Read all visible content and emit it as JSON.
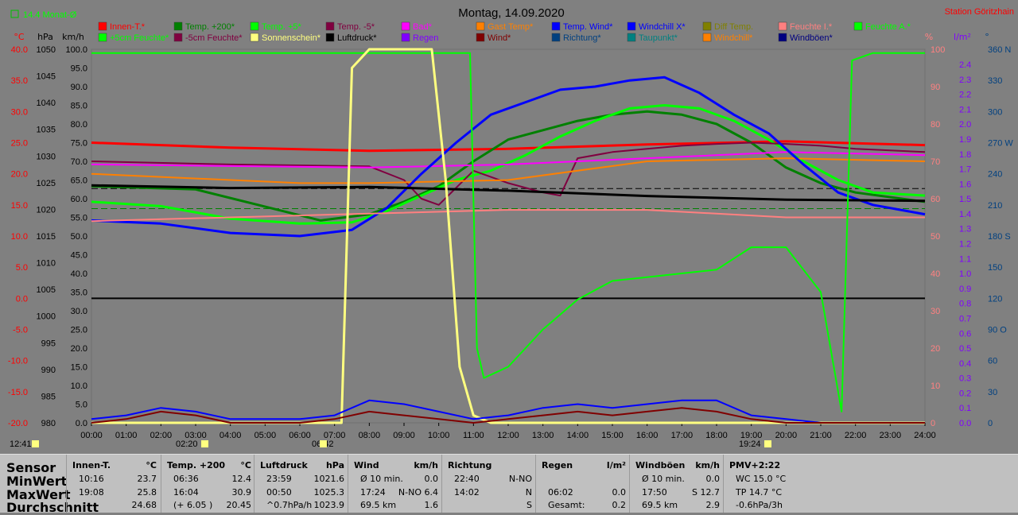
{
  "header": {
    "title": "Montag, 14.09.2020",
    "station": "Station Göritzhain",
    "monthly": "14.4 Monat-Ø"
  },
  "legend": [
    {
      "label": "Innen-T.*",
      "color": "#ff0000"
    },
    {
      "label": "Temp. +200*",
      "color": "#008000"
    },
    {
      "label": "Temp. +5*",
      "color": "#00ff00"
    },
    {
      "label": "Temp. -5*",
      "color": "#800040"
    },
    {
      "label": "Bad*",
      "color": "#ff00ff"
    },
    {
      "label": "Gast Temp*",
      "color": "#ff8000"
    },
    {
      "label": "Temp. Wind*",
      "color": "#0000ff"
    },
    {
      "label": "Windchill X*",
      "color": "#0000ff"
    },
    {
      "label": "Diff Temp.",
      "color": "#808000"
    },
    {
      "label": "Feuchte I.*",
      "color": "#ff8080"
    },
    {
      "label": "Feuchte A.*",
      "color": "#00ff00"
    },
    {
      "label": "+5cm Feuchte*",
      "color": "#00ff00"
    },
    {
      "label": "-5cm Feuchte*",
      "color": "#800040"
    },
    {
      "label": "Sonnenschein*",
      "color": "#ffff80"
    },
    {
      "label": "Luftdruck*",
      "color": "#000000"
    },
    {
      "label": "Regen",
      "color": "#8000ff"
    },
    {
      "label": "Wind*",
      "color": "#800000"
    },
    {
      "label": "Richtung*",
      "color": "#004080"
    },
    {
      "label": "Taupunkt*",
      "color": "#008080"
    },
    {
      "label": "Windchill*",
      "color": "#ff8000"
    },
    {
      "label": "Windböen*",
      "color": "#000080"
    }
  ],
  "axes": {
    "temp_unit": "°C",
    "hpa_unit": "hPa",
    "kmh_unit": "km/h",
    "pct_unit": "%",
    "rain_unit": "l/m²",
    "dir_unit": "°",
    "temp_ticks": [
      "40.0",
      "35.0",
      "30.0",
      "25.0",
      "20.0",
      "15.0",
      "10.0",
      "5.0",
      "0.0",
      "-5.0",
      "-10.0",
      "-15.0",
      "-20.0"
    ],
    "hpa_ticks": [
      "1050",
      "1045",
      "1040",
      "1035",
      "1030",
      "1025",
      "1020",
      "1015",
      "1010",
      "1005",
      "1000",
      "995",
      "990",
      "985",
      "980"
    ],
    "kmh_ticks": [
      "100.0",
      "95.0",
      "90.0",
      "85.0",
      "80.0",
      "75.0",
      "70.0",
      "65.0",
      "60.0",
      "55.0",
      "50.0",
      "45.0",
      "40.0",
      "35.0",
      "30.0",
      "25.0",
      "20.0",
      "15.0",
      "10.0",
      "5.0",
      "0.0"
    ],
    "pct_ticks": [
      "100",
      "90",
      "80",
      "70",
      "60",
      "50",
      "40",
      "30",
      "20",
      "10",
      "0"
    ],
    "rain_ticks": [
      "2.4",
      "2.3",
      "2.2",
      "2.1",
      "2.0",
      "1.9",
      "1.8",
      "1.7",
      "1.6",
      "1.5",
      "1.4",
      "1.3",
      "1.2",
      "1.1",
      "1.0",
      "0.9",
      "0.8",
      "0.7",
      "0.6",
      "0.5",
      "0.4",
      "0.3",
      "0.2",
      "0.1",
      "0.0"
    ],
    "dir_ticks": [
      "360 N",
      "330",
      "300",
      "270 W",
      "240",
      "210",
      "180 S",
      "150",
      "120",
      "90 O",
      "60",
      "30",
      "0"
    ],
    "time_ticks": [
      "00:00",
      "01:00",
      "02:00",
      "03:00",
      "04:00",
      "05:00",
      "06:00",
      "07:00",
      "08:00",
      "09:00",
      "10:00",
      "11:00",
      "12:00",
      "13:00",
      "14:00",
      "15:00",
      "16:00",
      "17:00",
      "18:00",
      "19:00",
      "20:00",
      "21:00",
      "22:00",
      "23:00",
      "24:00"
    ],
    "sun_events": [
      "12:41",
      "02:20",
      "06:42",
      "19:24"
    ]
  },
  "chart_data": {
    "type": "line",
    "title": "Montag, 14.09.2020",
    "x_range": [
      "00:00",
      "24:00"
    ],
    "ylim_temp": [
      -20,
      40
    ],
    "ylim_hpa": [
      980,
      1050
    ],
    "ylim_kmh": [
      0,
      100
    ],
    "ylim_pct": [
      0,
      100
    ],
    "series": [
      {
        "name": "Innen-T.*",
        "color": "#ff0000",
        "axis": "temp",
        "x": [
          0,
          4,
          8,
          12,
          16,
          20,
          24
        ],
        "values": [
          25.0,
          24.2,
          23.7,
          24.0,
          24.7,
          25.2,
          24.6
        ]
      },
      {
        "name": "Temp. +200*",
        "color": "#008000",
        "axis": "temp",
        "x": [
          0,
          3,
          6.6,
          8,
          9,
          10,
          11,
          12,
          13,
          14,
          15,
          16,
          17,
          18,
          19,
          20,
          21,
          22,
          24
        ],
        "values": [
          18.0,
          17.5,
          12.5,
          13.5,
          15.5,
          18.0,
          22.0,
          25.5,
          27.0,
          28.5,
          29.5,
          30.0,
          29.5,
          28.0,
          25.0,
          21.0,
          18.5,
          17.0,
          15.5
        ]
      },
      {
        "name": "Temp. +5*",
        "color": "#00ff00",
        "axis": "temp",
        "x": [
          0,
          2,
          4,
          6,
          7.5,
          8.5,
          9.5,
          10.5,
          11.5,
          12.5,
          13.5,
          14.5,
          15.5,
          16.5,
          17.5,
          18.5,
          19.5,
          20.5,
          21.5,
          22.5,
          24
        ],
        "values": [
          15.5,
          14.8,
          12.8,
          12.0,
          12.2,
          14.0,
          16.5,
          19.0,
          20.5,
          23.0,
          26.0,
          28.5,
          30.5,
          31.0,
          30.5,
          28.5,
          25.5,
          22.0,
          19.0,
          17.0,
          16.5
        ]
      },
      {
        "name": "Temp. -5*",
        "color": "#800040",
        "axis": "temp",
        "x": [
          0,
          4,
          8,
          9,
          9.5,
          10,
          11,
          12,
          13,
          13.5,
          14,
          15,
          16,
          17,
          18,
          19,
          20,
          21,
          22,
          24
        ],
        "values": [
          22.0,
          21.5,
          21.2,
          19.0,
          16.0,
          15.0,
          20.5,
          18.5,
          17.0,
          16.5,
          22.5,
          23.5,
          24.0,
          24.5,
          24.8,
          25.0,
          24.8,
          24.5,
          24.0,
          23.5
        ]
      },
      {
        "name": "Bad*",
        "color": "#ff00ff",
        "axis": "temp",
        "x": [
          0,
          8,
          12,
          16,
          20,
          24
        ],
        "values": [
          21.5,
          21.0,
          21.5,
          22.5,
          23.5,
          23.0
        ]
      },
      {
        "name": "Gast Temp*",
        "color": "#ff8000",
        "axis": "temp",
        "x": [
          0,
          6,
          8,
          12,
          16,
          20,
          24
        ],
        "values": [
          20.0,
          18.5,
          18.5,
          19.0,
          22.0,
          22.5,
          22.0
        ]
      },
      {
        "name": "Temp. Wind*",
        "color": "#0000ff",
        "axis": "temp",
        "x": [
          0,
          2,
          4,
          6,
          7.5,
          8.5,
          9.5,
          10.5,
          11.5,
          12.5,
          13.5,
          14.5,
          15.5,
          16.5,
          17.5,
          18.5,
          19.5,
          20.5,
          21.5,
          22.5,
          24
        ],
        "values": [
          12.5,
          12.0,
          10.5,
          10.0,
          11.0,
          14.5,
          20.0,
          25.0,
          29.5,
          31.5,
          33.5,
          34.0,
          35.0,
          35.5,
          33.0,
          29.5,
          26.5,
          21.5,
          17.0,
          15.0,
          13.5
        ]
      },
      {
        "name": "Luftdruck*",
        "color": "#000000",
        "axis": "hpa",
        "x": [
          0,
          4,
          8,
          12,
          16,
          20,
          24
        ],
        "values": [
          1024.5,
          1024.0,
          1024.2,
          1023.5,
          1022.5,
          1021.8,
          1021.6
        ]
      },
      {
        "name": "Feuchte I.*",
        "color": "#ff8080",
        "axis": "pct",
        "x": [
          0,
          8,
          12,
          16,
          20,
          24
        ],
        "values": [
          54,
          56,
          57,
          57,
          55,
          55
        ]
      },
      {
        "name": "Feuchte A.*",
        "color": "#00ff00",
        "axis": "pct",
        "x": [
          0,
          10.9,
          11.1,
          11.3,
          12,
          13,
          14,
          15,
          16,
          17,
          18,
          19,
          20,
          21,
          21.6,
          21.9,
          22.5,
          24
        ],
        "values": [
          99,
          99,
          20,
          12,
          15,
          25,
          33,
          38,
          39,
          40,
          41,
          47,
          47,
          35,
          3,
          97,
          99,
          99
        ]
      },
      {
        "name": "Sonnenschein*",
        "color": "#ffff80",
        "axis": "kmh",
        "x": [
          0,
          7.2,
          7.5,
          8.0,
          9.8,
          10.2,
          10.6,
          11,
          11.5,
          24
        ],
        "values": [
          0,
          0,
          95,
          100,
          100,
          65,
          15,
          2,
          0,
          0
        ]
      },
      {
        "name": "Windchill X*",
        "color": "#0000ff",
        "axis": "kmh",
        "x": [
          0,
          1,
          2,
          3,
          4,
          5,
          6,
          7,
          8,
          9,
          10,
          11,
          12,
          13,
          14,
          15,
          16,
          17,
          18,
          19,
          20,
          21,
          22,
          24
        ],
        "values": [
          1,
          2,
          4,
          3,
          1,
          1,
          1,
          2,
          6,
          5,
          3,
          1,
          2,
          4,
          5,
          4,
          5,
          6,
          6,
          2,
          1,
          0,
          0,
          0
        ]
      },
      {
        "name": "Wind*",
        "color": "#800000",
        "axis": "kmh",
        "x": [
          0,
          1,
          2,
          3,
          4,
          6,
          7,
          8,
          9,
          10,
          11,
          12,
          13,
          14,
          15,
          16,
          17,
          18,
          19,
          20,
          21,
          24
        ],
        "values": [
          0,
          1,
          3,
          2,
          0,
          0,
          1,
          3,
          2,
          1,
          0,
          1,
          2,
          3,
          2,
          3,
          4,
          3,
          1,
          0,
          0,
          0
        ]
      }
    ]
  },
  "table": {
    "rows_labels": [
      "Sensor",
      "MinWert",
      "MaxWert",
      "Durchschnitt"
    ],
    "columns": [
      {
        "title": "Innen-T.",
        "unit": "°C",
        "min_time": "10:16",
        "min_val": "23.7",
        "max_time": "19:08",
        "max_val": "25.8",
        "avg_left": "",
        "avg_val": "24.68"
      },
      {
        "title": "Temp. +200",
        "unit": "°C",
        "min_time": "06:36",
        "min_val": "12.4",
        "max_time": "16:04",
        "max_val": "30.9",
        "avg_left": "(+ 6.05 )",
        "avg_val": "20.45"
      },
      {
        "title": "Luftdruck",
        "unit": "hPa",
        "min_time": "23:59",
        "min_val": "1021.6",
        "max_time": "00:50",
        "max_val": "1025.3",
        "avg_left": "^0.7hPa/h",
        "avg_val": "1023.9"
      },
      {
        "title": "Wind",
        "unit": "km/h",
        "min_time": "Ø 10 min.",
        "min_val": "0.0",
        "max_time": "17:24",
        "max_val": "N-NO 6.4",
        "avg_left": "69.5 km",
        "avg_val": "1.6"
      },
      {
        "title": "Richtung",
        "unit": "",
        "min_time": "22:40",
        "min_val": "N-NO",
        "max_time": "14:02",
        "max_val": "N",
        "avg_left": "",
        "avg_val": "S"
      },
      {
        "title": "Regen",
        "unit": "l/m²",
        "min_time": "",
        "min_val": "",
        "max_time": "06:02",
        "max_val": "0.0",
        "avg_left": "Gesamt:",
        "avg_val": "0.2"
      },
      {
        "title": "Windböen",
        "unit": "km/h",
        "min_time": "Ø 10 min.",
        "min_val": "0.0",
        "max_time": "17:50",
        "max_val": "S 12.7",
        "avg_left": "69.5 km",
        "avg_val": "2.9"
      },
      {
        "title": "PMV+2:22",
        "unit": "",
        "min_time": "WC 15.0 °C",
        "min_val": "",
        "max_time": "TP 14.7 °C",
        "max_val": "",
        "avg_left": "-0.6hPa/3h",
        "avg_val": ""
      }
    ]
  }
}
